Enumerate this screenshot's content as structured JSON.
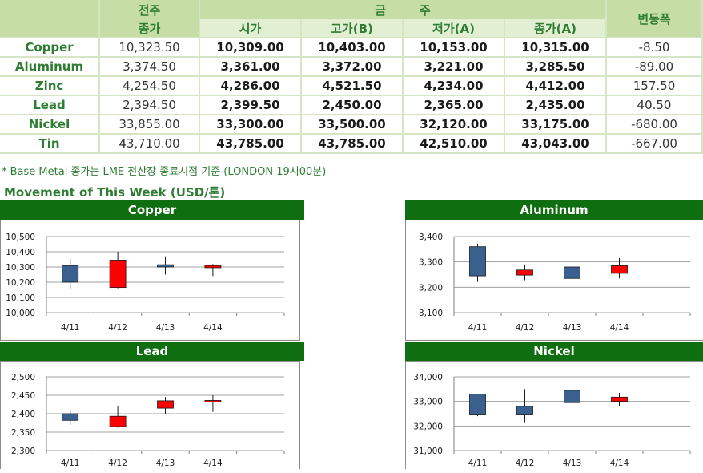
{
  "table": {
    "prev_week_label": "전주",
    "prev_close_label": "종가",
    "this_week_label": "금        주",
    "open_label": "시가",
    "high_label": "고가(B)",
    "low_label": "저가(A)",
    "close_label": "종가(A)",
    "change_label": "변동폭",
    "rows": [
      {
        "metal": "Copper",
        "prev": "10,323.50",
        "open": "10,309.00",
        "high": "10,403.00",
        "low": "10,153.00",
        "close": "10,315.00",
        "change": "-8.50"
      },
      {
        "metal": "Aluminum",
        "prev": "3,374.50",
        "open": "3,361.00",
        "high": "3,372.00",
        "low": "3,221.00",
        "close": "3,285.50",
        "change": "-89.00"
      },
      {
        "metal": "Zinc",
        "prev": "4,254.50",
        "open": "4,286.00",
        "high": "4,521.50",
        "low": "4,234.00",
        "close": "4,412.00",
        "change": "157.50"
      },
      {
        "metal": "Lead",
        "prev": "2,394.50",
        "open": "2,399.50",
        "high": "2,450.00",
        "low": "2,365.00",
        "close": "2,435.00",
        "change": "40.50"
      },
      {
        "metal": "Nickel",
        "prev": "33,855.00",
        "open": "33,300.00",
        "high": "33,500.00",
        "low": "32,120.00",
        "close": "33,175.00",
        "change": "-680.00"
      },
      {
        "metal": "Tin",
        "prev": "43,710.00",
        "open": "43,785.00",
        "high": "43,785.00",
        "low": "42,510.00",
        "close": "43,043.00",
        "change": "-667.00"
      }
    ]
  },
  "note": "* Base Metal 종가는 LME 전산장 종료시점 기준 (LONDON 19시00분)",
  "week_title": "Movement of This Week (USD/톤)",
  "colors": {
    "header_bg": "#c6dea6",
    "subheader_bg": "#e2efd3",
    "title_bar": "#0f6e0f",
    "up": "#ff0000",
    "down": "#3a6090",
    "text_green": "#2e7d32"
  },
  "chart_data": [
    {
      "type": "candlestick",
      "title": "Copper",
      "categories": [
        "4/11",
        "4/12",
        "4/13",
        "4/14"
      ],
      "ylim": [
        10000,
        10500
      ],
      "yticks": [
        "10,000",
        "10,100",
        "10,200",
        "10,300",
        "10,400",
        "10,500"
      ],
      "grid": true,
      "candles": [
        {
          "open": 10310,
          "high": 10355,
          "low": 10155,
          "close": 10200
        },
        {
          "open": 10165,
          "high": 10400,
          "low": 10160,
          "close": 10345
        },
        {
          "open": 10315,
          "high": 10370,
          "low": 10250,
          "close": 10300
        },
        {
          "open": 10295,
          "high": 10320,
          "low": 10240,
          "close": 10310
        }
      ]
    },
    {
      "type": "candlestick",
      "title": "Aluminum",
      "categories": [
        "4/11",
        "4/12",
        "4/13",
        "4/14"
      ],
      "ylim": [
        3100,
        3400
      ],
      "yticks": [
        "3,100",
        "3,200",
        "3,300",
        "3,400"
      ],
      "grid": true,
      "candles": [
        {
          "open": 3360,
          "high": 3372,
          "low": 3221,
          "close": 3245
        },
        {
          "open": 3248,
          "high": 3290,
          "low": 3228,
          "close": 3268
        },
        {
          "open": 3280,
          "high": 3305,
          "low": 3222,
          "close": 3235
        },
        {
          "open": 3255,
          "high": 3315,
          "low": 3235,
          "close": 3285
        }
      ]
    },
    {
      "type": "candlestick",
      "title": "Lead",
      "categories": [
        "4/11",
        "4/12",
        "4/13",
        "4/14"
      ],
      "ylim": [
        2300,
        2500
      ],
      "yticks": [
        "2,300",
        "2,350",
        "2,400",
        "2,450",
        "2,500"
      ],
      "grid": true,
      "candles": [
        {
          "open": 2400,
          "high": 2410,
          "low": 2370,
          "close": 2382
        },
        {
          "open": 2365,
          "high": 2420,
          "low": 2362,
          "close": 2393
        },
        {
          "open": 2415,
          "high": 2445,
          "low": 2398,
          "close": 2435
        },
        {
          "open": 2434,
          "high": 2450,
          "low": 2405,
          "close": 2436
        }
      ]
    },
    {
      "type": "candlestick",
      "title": "Nickel",
      "categories": [
        "4/11",
        "4/12",
        "4/13",
        "4/14"
      ],
      "ylim": [
        31000,
        34000
      ],
      "yticks": [
        "31,000",
        "32,000",
        "33,000",
        "34,000"
      ],
      "grid": true,
      "candles": [
        {
          "open": 33300,
          "high": 33300,
          "low": 32400,
          "close": 32450
        },
        {
          "open": 32800,
          "high": 33500,
          "low": 32120,
          "close": 32450
        },
        {
          "open": 33450,
          "high": 33450,
          "low": 32350,
          "close": 32950
        },
        {
          "open": 33000,
          "high": 33350,
          "low": 32800,
          "close": 33175
        }
      ]
    }
  ]
}
